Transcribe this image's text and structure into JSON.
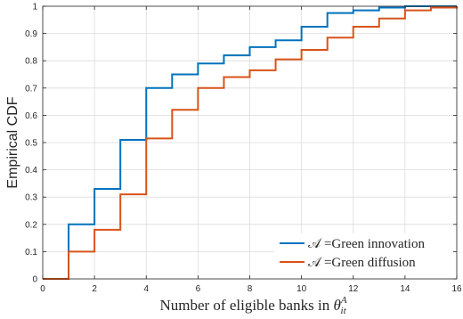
{
  "chart_data": {
    "type": "line",
    "step": true,
    "xlabel_text": "Number of eligible banks in ",
    "xlabel_symbol": "θ",
    "xlabel_sup": "A",
    "xlabel_sub": "it",
    "ylabel": "Empirical CDF",
    "xlim": [
      0,
      16
    ],
    "ylim": [
      0,
      1
    ],
    "xticks": [
      0,
      2,
      4,
      6,
      8,
      10,
      12,
      14,
      16
    ],
    "yticks": [
      0,
      0.1,
      0.2,
      0.3,
      0.4,
      0.5,
      0.6,
      0.7,
      0.8,
      0.9,
      1
    ],
    "ytick_labels": [
      "0",
      "0.1",
      "0.2",
      "0.3",
      "0.4",
      "0.5",
      "0.6",
      "0.7",
      "0.8",
      "0.9",
      "1"
    ],
    "grid": true,
    "legend_position": "bottom-right",
    "series": [
      {
        "name": "𝒜 =Green innovation",
        "color": "#0072BD",
        "x": [
          0,
          1,
          2,
          3,
          4,
          5,
          6,
          7,
          8,
          9,
          10,
          11,
          12,
          13,
          14,
          16
        ],
        "y": [
          0,
          0.2,
          0.33,
          0.51,
          0.7,
          0.75,
          0.79,
          0.82,
          0.85,
          0.875,
          0.925,
          0.975,
          0.985,
          0.995,
          1.0,
          1.0
        ]
      },
      {
        "name": "𝒜 =Green diffusion",
        "color": "#D95319",
        "x": [
          0,
          1,
          2,
          3,
          4,
          5,
          6,
          7,
          8,
          9,
          10,
          11,
          12,
          13,
          14,
          15,
          16
        ],
        "y": [
          0,
          0.1,
          0.18,
          0.31,
          0.515,
          0.62,
          0.7,
          0.74,
          0.765,
          0.805,
          0.84,
          0.885,
          0.925,
          0.955,
          0.985,
          0.995,
          1.0
        ]
      }
    ]
  }
}
